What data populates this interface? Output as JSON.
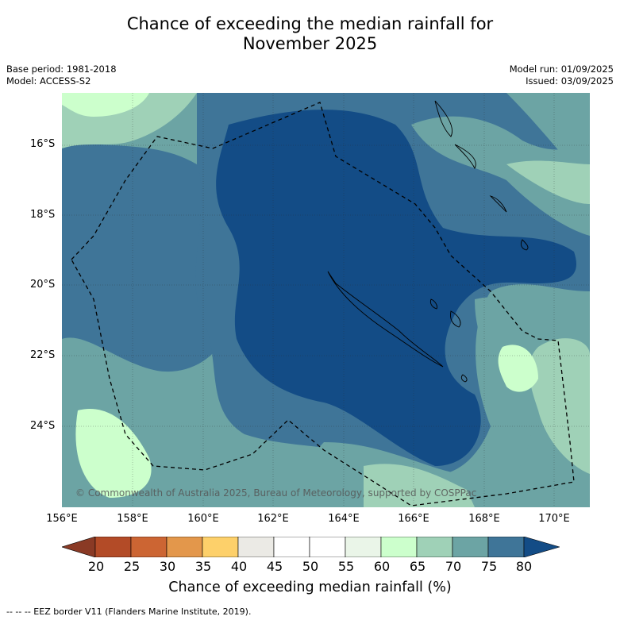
{
  "title_line1": "Chance of exceeding the median rainfall for",
  "title_line2": "November 2025",
  "meta_left": {
    "base_period": "Base period: 1981-2018",
    "model": "Model: ACCESS-S2"
  },
  "meta_right": {
    "model_run": "Model run: 01/09/2025",
    "issued": "Issued: 03/09/2025"
  },
  "map": {
    "copyright": "© Commonwealth of Australia 2025, Bureau of Meteorology, supported by COSPPac",
    "lat_labels": [
      "16°S",
      "18°S",
      "20°S",
      "22°S",
      "24°S"
    ],
    "lon_labels": [
      "156°E",
      "158°E",
      "160°E",
      "162°E",
      "164°E",
      "166°E",
      "168°E",
      "170°E"
    ],
    "eez_border": "dashed"
  },
  "colorbar": {
    "ticks": [
      "20",
      "25",
      "30",
      "35",
      "40",
      "45",
      "50",
      "55",
      "60",
      "65",
      "70",
      "75",
      "80"
    ],
    "colors": [
      "#8a3a25",
      "#b34b27",
      "#cc6533",
      "#e3974b",
      "#fdd06a",
      "#ebeae5",
      "#ffffff",
      "#ffffff",
      "#eaf5e8",
      "#ccffcc",
      "#9fd1b7",
      "#6ca4a4",
      "#3f7598",
      "#134c86"
    ],
    "label": "Chance of exceeding median rainfall (%)"
  },
  "footer": "--  --  -- EEZ border V11 (Flanders Marine Institute, 2019)."
}
